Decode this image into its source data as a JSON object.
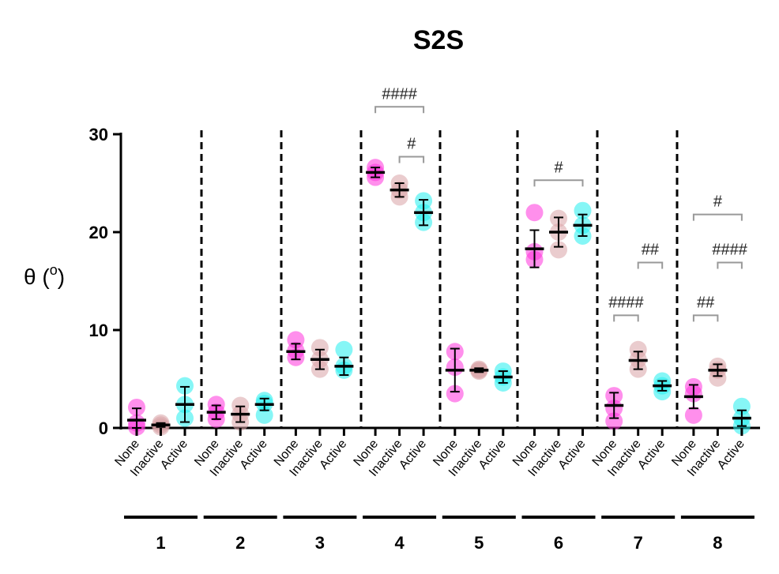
{
  "chart_data": {
    "type": "scatter",
    "title": "S2S",
    "ylabel": "θ (o)",
    "ylabel_main": "θ (",
    "ylabel_sup": "o",
    "ylabel_close": ")",
    "ylim": [
      0,
      30
    ],
    "yticks": [
      "0",
      "10",
      "20",
      "30"
    ],
    "categories": [
      "None",
      "Inactive",
      "Active"
    ],
    "colors": {
      "None": "#ff33dd",
      "Inactive": "#d9a3a6",
      "Active": "#22eeee"
    },
    "groups": [
      {
        "label": "1",
        "None": {
          "mean": 0.8,
          "sd": 1.2,
          "points": [
            2.1,
            0.5,
            0.1
          ]
        },
        "Inactive": {
          "mean": 0.3,
          "sd": 0.2,
          "points": [
            0.5,
            0.3,
            0.1
          ]
        },
        "Active": {
          "mean": 2.4,
          "sd": 1.8,
          "points": [
            4.3,
            2.4,
            1.0
          ]
        }
      },
      {
        "label": "2",
        "None": {
          "mean": 1.6,
          "sd": 0.7,
          "points": [
            2.4,
            1.6,
            0.9
          ]
        },
        "Inactive": {
          "mean": 1.4,
          "sd": 0.8,
          "points": [
            2.3,
            1.4,
            0.6
          ]
        },
        "Active": {
          "mean": 2.4,
          "sd": 0.6,
          "points": [
            2.8,
            2.5,
            1.3
          ]
        }
      },
      {
        "label": "3",
        "None": {
          "mean": 7.8,
          "sd": 0.8,
          "points": [
            9.0,
            7.9,
            7.2
          ]
        },
        "Inactive": {
          "mean": 7.0,
          "sd": 1.0,
          "points": [
            8.2,
            7.0,
            6.0
          ]
        },
        "Active": {
          "mean": 6.3,
          "sd": 0.9,
          "points": [
            8.0,
            6.3,
            5.9
          ]
        }
      },
      {
        "label": "4",
        "None": {
          "mean": 26.1,
          "sd": 0.5,
          "points": [
            26.6,
            26.1,
            25.6
          ]
        },
        "Inactive": {
          "mean": 24.3,
          "sd": 0.7,
          "points": [
            25.0,
            24.3,
            23.6
          ]
        },
        "Active": {
          "mean": 22.0,
          "sd": 1.3,
          "points": [
            23.2,
            22.0,
            21.0
          ]
        }
      },
      {
        "label": "5",
        "None": {
          "mean": 5.9,
          "sd": 2.2,
          "points": [
            7.8,
            6.2,
            3.5
          ]
        },
        "Inactive": {
          "mean": 5.9,
          "sd": 0.2,
          "points": [
            6.0,
            5.9,
            5.8
          ]
        },
        "Active": {
          "mean": 5.2,
          "sd": 0.6,
          "points": [
            5.8,
            5.2,
            4.6
          ]
        }
      },
      {
        "label": "6",
        "None": {
          "mean": 18.3,
          "sd": 1.9,
          "points": [
            22.0,
            18.0,
            17.2
          ]
        },
        "Inactive": {
          "mean": 20.0,
          "sd": 1.5,
          "points": [
            21.4,
            20.0,
            18.2
          ]
        },
        "Active": {
          "mean": 20.7,
          "sd": 1.1,
          "points": [
            22.2,
            20.7,
            19.6
          ]
        }
      },
      {
        "label": "7",
        "None": {
          "mean": 2.3,
          "sd": 1.3,
          "points": [
            3.3,
            2.0,
            0.7
          ]
        },
        "Inactive": {
          "mean": 6.9,
          "sd": 0.9,
          "points": [
            8.0,
            7.0,
            6.0
          ]
        },
        "Active": {
          "mean": 4.3,
          "sd": 0.5,
          "points": [
            4.8,
            4.3,
            3.7
          ]
        }
      },
      {
        "label": "8",
        "None": {
          "mean": 3.2,
          "sd": 1.2,
          "points": [
            4.2,
            3.5,
            1.3
          ]
        },
        "Inactive": {
          "mean": 5.9,
          "sd": 0.6,
          "points": [
            6.3,
            5.9,
            5.1
          ]
        },
        "Active": {
          "mean": 1.0,
          "sd": 0.8,
          "points": [
            2.2,
            1.0,
            0.2
          ]
        }
      }
    ],
    "significance": [
      {
        "group": 4,
        "from": "None",
        "to": "Active",
        "label": "####",
        "y": 32.8
      },
      {
        "group": 4,
        "from": "Inactive",
        "to": "Active",
        "label": "#",
        "y": 27.7
      },
      {
        "group": 6,
        "from": "None",
        "to": "Active",
        "label": "#",
        "y": 25.3
      },
      {
        "group": 7,
        "from": "None",
        "to": "Inactive",
        "label": "####",
        "y": 11.5
      },
      {
        "group": 7,
        "from": "Inactive",
        "to": "Active",
        "label": "##",
        "y": 16.9
      },
      {
        "group": 8,
        "from": "None",
        "to": "Active",
        "label": "#",
        "y": 21.8
      },
      {
        "group": 8,
        "from": "Inactive",
        "to": "Active",
        "label": "####",
        "y": 16.9
      },
      {
        "group": 8,
        "from": "None",
        "to": "Inactive",
        "label": "##",
        "y": 11.5
      }
    ]
  }
}
